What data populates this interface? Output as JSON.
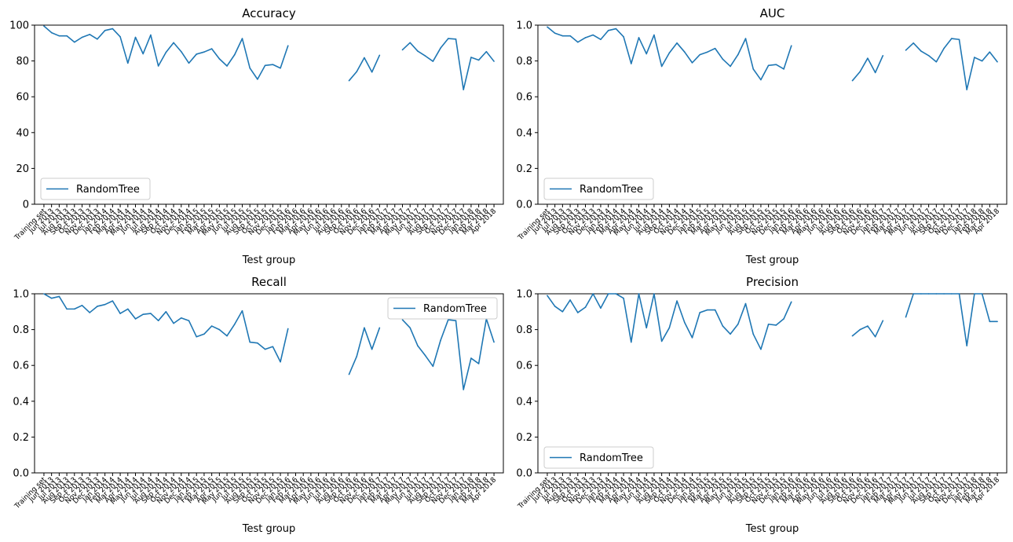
{
  "chart_data": [
    {
      "type": "line",
      "title": "Accuracy",
      "xlabel": "Test group",
      "ylabel": "",
      "ylim": [
        0,
        100
      ],
      "yticks": [
        "0",
        "20",
        "40",
        "60",
        "80",
        "100"
      ],
      "legend": {
        "position": "lower-left",
        "entries": [
          "RandomTree"
        ]
      },
      "series": [
        {
          "name": "RandomTree",
          "color": "#1f77b4",
          "values": [
            99.5,
            95.8,
            94,
            94,
            90.5,
            93.2,
            94.8,
            92.2,
            97,
            98,
            93.5,
            78.8,
            93.2,
            84,
            94.5,
            77.2,
            84.8,
            90.2,
            85.2,
            78.8,
            83.8,
            85,
            86.8,
            81.2,
            77.2,
            83.5,
            92.5,
            76,
            69.8,
            77.5,
            78,
            76,
            88.5,
            null,
            null,
            null,
            null,
            null,
            null,
            null,
            69,
            74,
            81.8,
            73.8,
            83.2,
            null,
            null,
            86.2,
            90.2,
            85.5,
            82.8,
            79.8,
            87.2,
            92.5,
            92.2,
            64,
            82,
            80.5,
            85.2,
            79.8
          ]
        }
      ]
    },
    {
      "type": "line",
      "title": "AUC",
      "xlabel": "Test group",
      "ylabel": "",
      "ylim": [
        0,
        1
      ],
      "yticks": [
        "0.0",
        "0.2",
        "0.4",
        "0.6",
        "0.8",
        "1.0"
      ],
      "legend": {
        "position": "lower-left",
        "entries": [
          "RandomTree"
        ]
      },
      "series": [
        {
          "name": "RandomTree",
          "color": "#1f77b4",
          "values": [
            0.99,
            0.955,
            0.94,
            0.94,
            0.905,
            0.93,
            0.945,
            0.92,
            0.97,
            0.98,
            0.935,
            0.785,
            0.93,
            0.84,
            0.945,
            0.77,
            0.845,
            0.9,
            0.85,
            0.79,
            0.835,
            0.85,
            0.87,
            0.81,
            0.77,
            0.835,
            0.925,
            0.755,
            0.695,
            0.775,
            0.78,
            0.755,
            0.885,
            null,
            null,
            null,
            null,
            null,
            null,
            null,
            0.69,
            0.74,
            0.815,
            0.735,
            0.83,
            null,
            null,
            0.86,
            0.9,
            0.855,
            0.83,
            0.795,
            0.87,
            0.925,
            0.92,
            0.64,
            0.82,
            0.8,
            0.85,
            0.795
          ]
        }
      ]
    },
    {
      "type": "line",
      "title": "Recall",
      "xlabel": "Test group",
      "ylabel": "",
      "ylim": [
        0,
        1
      ],
      "yticks": [
        "0.0",
        "0.2",
        "0.4",
        "0.6",
        "0.8",
        "1.0"
      ],
      "legend": {
        "position": "upper-right",
        "entries": [
          "RandomTree"
        ]
      },
      "series": [
        {
          "name": "RandomTree",
          "color": "#1f77b4",
          "values": [
            1.0,
            0.975,
            0.985,
            0.915,
            0.915,
            0.935,
            0.895,
            0.93,
            0.94,
            0.96,
            0.89,
            0.915,
            0.86,
            0.885,
            0.89,
            0.85,
            0.9,
            0.835,
            0.865,
            0.85,
            0.76,
            0.775,
            0.82,
            0.8,
            0.765,
            0.83,
            0.905,
            0.73,
            0.725,
            0.69,
            0.705,
            0.62,
            0.805,
            null,
            null,
            null,
            null,
            null,
            null,
            null,
            0.55,
            0.65,
            0.81,
            0.69,
            0.81,
            null,
            null,
            0.855,
            0.81,
            0.71,
            0.655,
            0.595,
            0.74,
            0.855,
            0.85,
            0.465,
            0.64,
            0.61,
            0.86,
            0.73
          ]
        }
      ]
    },
    {
      "type": "line",
      "title": "Precision",
      "xlabel": "Test group",
      "ylabel": "",
      "ylim": [
        0,
        1
      ],
      "yticks": [
        "0.0",
        "0.2",
        "0.4",
        "0.6",
        "0.8",
        "1.0"
      ],
      "legend": {
        "position": "lower-left",
        "entries": [
          "RandomTree"
        ]
      },
      "series": [
        {
          "name": "RandomTree",
          "color": "#1f77b4",
          "values": [
            0.99,
            0.93,
            0.9,
            0.965,
            0.895,
            0.925,
            1.0,
            0.92,
            1.0,
            1.0,
            0.975,
            0.73,
            1.0,
            0.81,
            1.0,
            0.735,
            0.81,
            0.96,
            0.84,
            0.755,
            0.895,
            0.91,
            0.91,
            0.82,
            0.775,
            0.83,
            0.945,
            0.775,
            0.69,
            0.83,
            0.825,
            0.86,
            0.955,
            null,
            null,
            null,
            null,
            null,
            null,
            null,
            0.765,
            0.8,
            0.82,
            0.76,
            0.85,
            null,
            null,
            0.87,
            1.0,
            1.0,
            1.0,
            1.0,
            1.0,
            1.0,
            1.0,
            0.71,
            1.0,
            1.0,
            0.845,
            0.845
          ]
        }
      ]
    }
  ],
  "categories": [
    "Training set",
    "Jun 2013",
    "Jul 2013",
    "Aug 2013",
    "Sep 2013",
    "Oct 2013",
    "Nov 2013",
    "Dec 2013",
    "Jan 2014",
    "Feb 2014",
    "Mar 2014",
    "Apr 2014",
    "May 2014",
    "Jun 2014",
    "Jul 2014",
    "Aug 2014",
    "Sep 2014",
    "Oct 2014",
    "Nov 2014",
    "Dec 2014",
    "Jan 2015",
    "Feb 2015",
    "Mar 2015",
    "Apr 2015",
    "May 2015",
    "Jun 2015",
    "Jul 2015",
    "Aug 2015",
    "Sep 2015",
    "Oct 2015",
    "Nov 2015",
    "Dec 2015",
    "Jan 2016",
    "Feb 2016",
    "Mar 2016",
    "Apr 2016",
    "May 2016",
    "Jun 2016",
    "Jul 2016",
    "Aug 2016",
    "Sep 2016",
    "Oct 2016",
    "Nov 2016",
    "Dec 2016",
    "Jan 2017",
    "Feb 2017",
    "Mar 2017",
    "Apr 2017",
    "May 2017",
    "Jun 2017",
    "Jul 2017",
    "Aug 2017",
    "Sep 2017",
    "Oct 2017",
    "Nov 2017",
    "Dec 2017",
    "Jan 2018",
    "Feb 2018",
    "Mar 2018",
    "Apr 2018"
  ]
}
